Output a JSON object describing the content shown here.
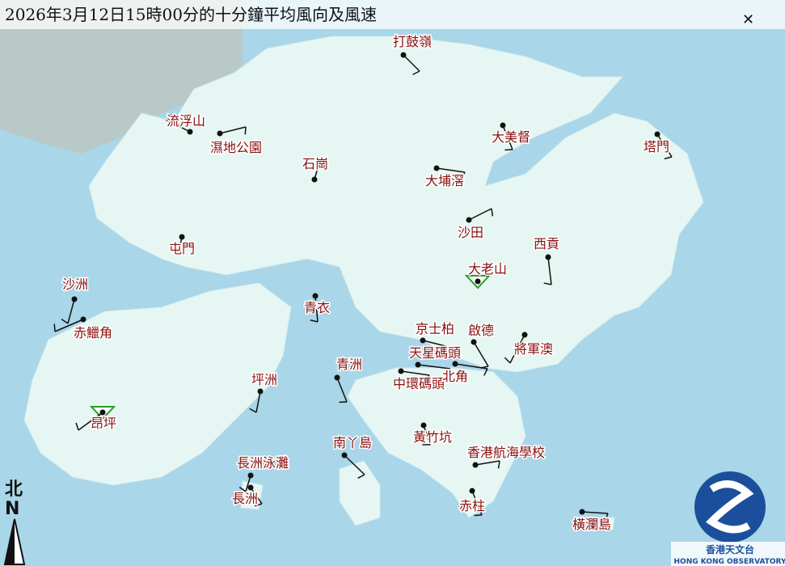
{
  "header": {
    "title": "2026年3月12日15時00分的十分鐘平均風向及風速"
  },
  "stations": [
    {
      "label": "打鼓嶺"
    },
    {
      "label": "流浮山"
    },
    {
      "label": "濕地公園"
    },
    {
      "label": "石崗"
    },
    {
      "label": "大美督"
    },
    {
      "label": "塔門"
    },
    {
      "label": "大埔滘"
    },
    {
      "label": "沙田"
    },
    {
      "label": "西貢"
    },
    {
      "label": "屯門"
    },
    {
      "label": "大老山"
    },
    {
      "label": "沙洲"
    },
    {
      "label": "赤鱲角"
    },
    {
      "label": "青衣"
    },
    {
      "label": "京士柏"
    },
    {
      "label": "啟德"
    },
    {
      "label": "將軍澳"
    },
    {
      "label": "天星碼頭"
    },
    {
      "label": "中環碼頭"
    },
    {
      "label": "北角"
    },
    {
      "label": "青洲"
    },
    {
      "label": "坪洲"
    },
    {
      "label": "昂坪"
    },
    {
      "label": "黃竹坑"
    },
    {
      "label": "南丫島"
    },
    {
      "label": "香港航海學校"
    },
    {
      "label": "長洲泳灘"
    },
    {
      "label": "長洲"
    },
    {
      "label": "赤柱"
    },
    {
      "label": "橫瀾島"
    }
  ],
  "compass": {
    "label_zh": "北",
    "label_en": "N"
  },
  "logo": {
    "name": "香港天文台",
    "name_en": "HONG KONG OBSERVATORY"
  }
}
